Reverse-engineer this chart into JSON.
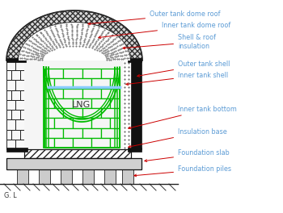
{
  "background_color": "#ffffff",
  "label_color": "#5b9bd5",
  "arrow_color": "#cc0000",
  "outer_shell_color": "#111111",
  "inner_shell_color": "#00bb00",
  "insulation_dot_color": "#555555",
  "brick_outer_color": "#ffffff",
  "brick_inner_color": "#ffffff",
  "brick_line_color": "#222222",
  "hatch_color": "#333333",
  "lng_color": "#99ccff",
  "gl_label": "G. L",
  "lng_label": "LNG",
  "labels": [
    "Outer tank dome roof",
    "Inner tank dome roof",
    "Shell & roof\ninsulation",
    "Outer tank shell",
    "Inner tank shell",
    "Inner tank bottom",
    "Insulation base",
    "Foundation slab",
    "Foundation piles"
  ],
  "font_size": 5.8
}
